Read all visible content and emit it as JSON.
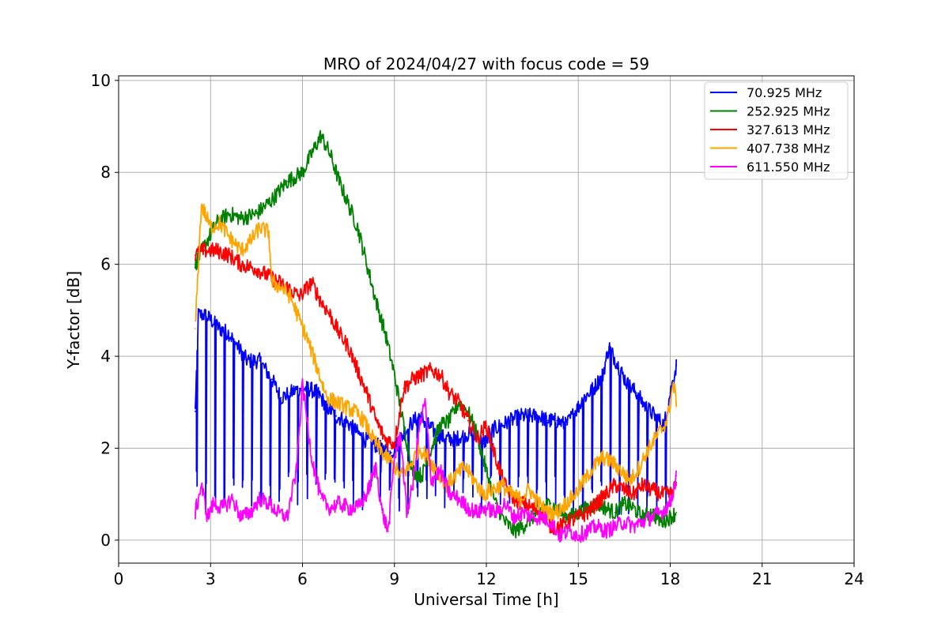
{
  "chart_data": {
    "type": "line",
    "title": "MRO of 2024/04/27 with focus code = 59",
    "xlabel": "Universal Time [h]",
    "ylabel": "Y-factor [dB]",
    "xlim": [
      0,
      24
    ],
    "ylim": [
      -0.5,
      10.1
    ],
    "x_ticks": [
      0,
      3,
      6,
      9,
      12,
      15,
      18,
      21,
      24
    ],
    "x_tick_labels": [
      "0",
      "3",
      "6",
      "9",
      "12",
      "15",
      "18",
      "21",
      "24"
    ],
    "y_ticks": [
      0,
      2,
      4,
      6,
      8,
      10
    ],
    "y_tick_labels": [
      "0",
      "2",
      "4",
      "6",
      "8",
      "10"
    ],
    "grid": true,
    "legend_position": "top-right",
    "series": [
      {
        "name": " 70.925 MHz",
        "color": "#0000ff",
        "x": [
          2.5,
          2.6,
          2.8,
          3.0,
          3.3,
          3.6,
          3.9,
          4.2,
          4.6,
          5.0,
          5.3,
          5.6,
          5.9,
          6.2,
          6.5,
          6.8,
          7.1,
          7.4,
          7.7,
          8.0,
          8.3,
          8.6,
          8.9,
          9.2,
          9.5,
          9.8,
          10.1,
          10.4,
          10.7,
          11.0,
          11.3,
          11.6,
          11.9,
          12.2,
          12.5,
          12.8,
          13.1,
          13.4,
          13.7,
          14.0,
          14.3,
          14.6,
          14.9,
          15.2,
          15.5,
          15.8,
          16.0,
          16.3,
          16.6,
          16.9,
          17.2,
          17.5,
          17.8,
          18.0,
          18.2
        ],
        "y": [
          2.8,
          4.9,
          4.9,
          4.8,
          4.6,
          4.5,
          4.2,
          3.9,
          3.9,
          3.5,
          3.1,
          3.2,
          3.3,
          3.3,
          3.2,
          2.9,
          2.7,
          2.6,
          2.4,
          2.2,
          2.1,
          2.0,
          1.9,
          2.2,
          2.5,
          2.7,
          2.5,
          2.3,
          2.2,
          2.2,
          2.3,
          2.3,
          2.1,
          2.4,
          2.5,
          2.6,
          2.7,
          2.7,
          2.7,
          2.6,
          2.6,
          2.5,
          2.8,
          3.1,
          3.3,
          3.6,
          4.2,
          3.8,
          3.4,
          3.2,
          2.9,
          2.7,
          2.5,
          3.2,
          3.8
        ],
        "spikes": {
          "start": 2.55,
          "end": 18.1,
          "step": 0.3,
          "depth_to": 0.5
        }
      },
      {
        "name": " 252.925 MHz",
        "color": "#008000",
        "x": [
          2.5,
          2.8,
          3.2,
          3.6,
          4.0,
          4.5,
          5.0,
          5.5,
          6.0,
          6.3,
          6.6,
          6.9,
          7.2,
          7.5,
          7.8,
          8.1,
          8.4,
          8.7,
          9.0,
          9.3,
          9.6,
          9.9,
          10.2,
          10.5,
          10.8,
          11.1,
          11.4,
          11.7,
          12.0,
          12.3,
          12.6,
          12.9,
          13.2,
          13.5,
          13.8,
          14.1,
          14.4,
          14.7,
          15.0,
          15.3,
          15.6,
          15.9,
          16.2,
          16.5,
          16.8,
          17.1,
          17.4,
          17.7,
          18.0,
          18.2
        ],
        "y": [
          6.0,
          6.4,
          6.9,
          7.1,
          7.0,
          7.1,
          7.4,
          7.8,
          8.0,
          8.4,
          8.8,
          8.4,
          7.8,
          7.3,
          6.8,
          6.0,
          5.2,
          4.5,
          3.6,
          2.5,
          1.5,
          1.4,
          2.0,
          2.5,
          2.6,
          3.0,
          2.8,
          2.3,
          1.5,
          0.8,
          0.4,
          0.2,
          0.3,
          0.5,
          0.7,
          0.8,
          0.6,
          0.5,
          0.6,
          0.7,
          0.8,
          0.7,
          0.6,
          0.8,
          0.7,
          0.5,
          0.6,
          0.4,
          0.5,
          0.6
        ]
      },
      {
        "name": " 327.613 MHz",
        "color": "#ff0000",
        "x": [
          2.5,
          2.8,
          3.2,
          3.6,
          4.0,
          4.5,
          5.0,
          5.5,
          5.9,
          6.3,
          6.6,
          6.9,
          7.2,
          7.5,
          7.8,
          8.1,
          8.4,
          8.7,
          9.0,
          9.3,
          9.6,
          9.9,
          10.2,
          10.5,
          10.8,
          11.1,
          11.4,
          11.7,
          12.0,
          12.3,
          12.6,
          12.9,
          13.2,
          13.5,
          13.8,
          14.1,
          14.4,
          14.7,
          15.0,
          15.3,
          15.6,
          15.9,
          16.2,
          16.5,
          16.8,
          17.1,
          17.4,
          17.7,
          18.0,
          18.2
        ],
        "y": [
          6.2,
          6.3,
          6.3,
          6.2,
          6.0,
          5.9,
          5.7,
          5.5,
          5.3,
          5.6,
          5.2,
          4.9,
          4.5,
          4.2,
          3.7,
          3.2,
          2.6,
          2.2,
          2.1,
          3.3,
          3.5,
          3.6,
          3.7,
          3.6,
          3.2,
          3.0,
          2.6,
          2.2,
          2.5,
          1.8,
          1.2,
          0.9,
          0.8,
          0.7,
          0.6,
          0.3,
          0.3,
          0.4,
          0.5,
          0.6,
          0.8,
          1.0,
          1.2,
          1.1,
          1.0,
          1.2,
          1.1,
          1.0,
          1.0,
          1.2
        ]
      },
      {
        "name": " 407.738 MHz",
        "color": "#ffa500",
        "x": [
          2.5,
          2.7,
          3.0,
          3.3,
          3.6,
          4.0,
          4.3,
          4.6,
          4.9,
          5.0,
          5.3,
          5.6,
          5.9,
          6.2,
          6.5,
          6.8,
          7.1,
          7.4,
          7.7,
          8.0,
          8.3,
          8.6,
          8.9,
          9.2,
          9.5,
          9.8,
          10.1,
          10.4,
          10.7,
          11.0,
          11.3,
          11.6,
          11.9,
          12.2,
          12.5,
          12.8,
          13.1,
          13.4,
          13.7,
          14.0,
          14.3,
          14.6,
          14.9,
          15.2,
          15.5,
          15.8,
          16.1,
          16.4,
          16.7,
          17.0,
          17.3,
          17.6,
          17.9,
          18.1,
          18.2
        ],
        "y": [
          4.6,
          7.3,
          6.8,
          6.9,
          6.6,
          6.3,
          6.5,
          6.8,
          6.7,
          5.6,
          5.5,
          5.3,
          4.8,
          4.3,
          3.7,
          3.1,
          3.0,
          2.9,
          2.8,
          2.6,
          2.2,
          1.9,
          1.7,
          1.4,
          1.6,
          2.0,
          1.8,
          1.5,
          1.2,
          1.4,
          1.6,
          1.3,
          1.0,
          1.1,
          1.2,
          1.0,
          0.9,
          1.1,
          0.8,
          0.6,
          0.6,
          0.8,
          1.0,
          1.3,
          1.6,
          1.8,
          1.7,
          1.5,
          1.3,
          1.6,
          2.0,
          2.3,
          2.6,
          3.4,
          3.0
        ]
      },
      {
        "name": " 611.550 MHz",
        "color": "#ff00ff",
        "x": [
          2.5,
          2.7,
          2.9,
          3.1,
          3.4,
          3.7,
          4.0,
          4.3,
          4.6,
          4.9,
          5.2,
          5.5,
          5.8,
          6.0,
          6.3,
          6.6,
          6.9,
          7.2,
          7.5,
          7.8,
          8.1,
          8.4,
          8.6,
          8.8,
          9.0,
          9.2,
          9.4,
          9.6,
          9.8,
          10.0,
          10.2,
          10.5,
          10.8,
          11.1,
          11.4,
          11.7,
          12.0,
          12.3,
          12.6,
          12.9,
          13.2,
          13.5,
          13.8,
          14.1,
          14.4,
          14.7,
          15.0,
          15.3,
          15.6,
          15.9,
          16.2,
          16.5,
          16.8,
          17.1,
          17.4,
          17.7,
          18.0,
          18.2
        ],
        "y": [
          0.6,
          1.2,
          0.5,
          0.8,
          0.7,
          0.9,
          0.5,
          0.6,
          0.9,
          0.8,
          0.6,
          0.5,
          1.5,
          3.4,
          1.8,
          0.9,
          0.7,
          0.8,
          0.7,
          0.7,
          1.0,
          1.6,
          0.6,
          0.2,
          1.8,
          2.3,
          0.6,
          1.2,
          2.4,
          3.0,
          1.3,
          1.5,
          1.0,
          0.9,
          0.7,
          0.6,
          0.7,
          0.6,
          0.8,
          0.5,
          0.6,
          0.5,
          0.5,
          0.4,
          0.1,
          0.2,
          0.1,
          0.2,
          0.3,
          0.2,
          0.3,
          0.4,
          0.3,
          0.4,
          0.5,
          0.6,
          0.8,
          1.4
        ]
      }
    ]
  }
}
